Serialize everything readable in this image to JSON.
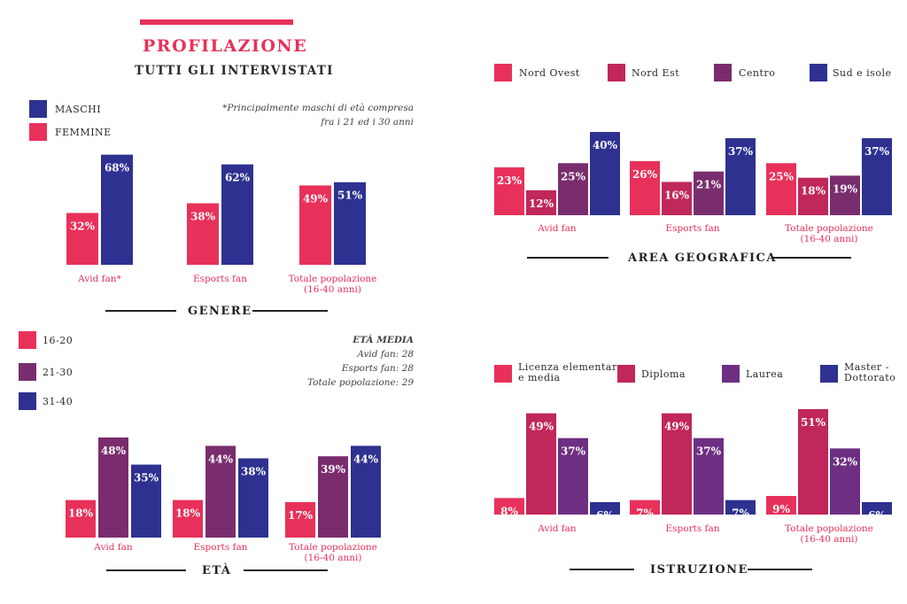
{
  "header": {
    "title": "PROFILAZIONE",
    "subtitle": "TUTTI GLI INTERVISTATI"
  },
  "colors": {
    "red": "#e8315a",
    "crimson": "#c0275a",
    "plum": "#7a2d6e",
    "purple": "#6e2f82",
    "navy": "#2e3190"
  },
  "panels": {
    "genere": {
      "section_label": "GENERE",
      "legend": [
        {
          "label": "MASCHI",
          "color": "#2e3190"
        },
        {
          "label": "FEMMINE",
          "color": "#e8315a"
        }
      ],
      "note": [
        "*Principalmente maschi di età compresa",
        "fra i 21 ed i 30 anni"
      ]
    },
    "area": {
      "section_label": "AREA GEOGRAFICA",
      "legend": [
        {
          "label": "Nord Ovest",
          "color": "#e8315a"
        },
        {
          "label": "Nord Est",
          "color": "#c0275a"
        },
        {
          "label": "Centro",
          "color": "#7a2d6e"
        },
        {
          "label": "Sud e isole",
          "color": "#2e3190"
        }
      ]
    },
    "eta": {
      "section_label": "ETÀ",
      "legend": [
        {
          "label": "16-20",
          "color": "#e8315a"
        },
        {
          "label": "21-30",
          "color": "#7a2d6e"
        },
        {
          "label": "31-40",
          "color": "#2e3190"
        }
      ],
      "note_title": "ETÀ MEDIA",
      "note_lines": [
        "Avid fan: 28",
        "Esports fan: 28",
        "Totale popolazione: 29"
      ]
    },
    "istruzione": {
      "section_label": "ISTRUZIONE",
      "legend": [
        {
          "label": "Licenza elementare\ne media",
          "color": "#e8315a"
        },
        {
          "label": "Diploma",
          "color": "#c0275a"
        },
        {
          "label": "Laurea",
          "color": "#6e2f82"
        },
        {
          "label": "Master -\nDottorato",
          "color": "#2e3190"
        }
      ]
    }
  },
  "chart_data": [
    {
      "id": "genere",
      "type": "bar",
      "categories": [
        "Avid fan*",
        "Esports fan",
        "Totale popolazione\n(16-40 anni)"
      ],
      "series": [
        {
          "name": "FEMMINE",
          "color": "#e8315a",
          "values": [
            32,
            38,
            49
          ]
        },
        {
          "name": "MASCHI",
          "color": "#2e3190",
          "values": [
            68,
            62,
            51
          ]
        }
      ],
      "ylim": [
        0,
        70
      ]
    },
    {
      "id": "area",
      "type": "bar",
      "categories": [
        "Avid fan",
        "Esports fan",
        "Totale popolazione\n(16-40 anni)"
      ],
      "series": [
        {
          "name": "Nord Ovest",
          "color": "#e8315a",
          "values": [
            23,
            26,
            25
          ]
        },
        {
          "name": "Nord Est",
          "color": "#c0275a",
          "values": [
            12,
            16,
            18
          ]
        },
        {
          "name": "Centro",
          "color": "#7a2d6e",
          "values": [
            25,
            21,
            19
          ]
        },
        {
          "name": "Sud e isole",
          "color": "#2e3190",
          "values": [
            40,
            37,
            37
          ]
        }
      ],
      "ylim": [
        0,
        40
      ]
    },
    {
      "id": "eta",
      "type": "bar",
      "categories": [
        "Avid fan",
        "Esports fan",
        "Totale popolazione\n(16-40 anni)"
      ],
      "series": [
        {
          "name": "16-20",
          "color": "#e8315a",
          "values": [
            18,
            18,
            17
          ]
        },
        {
          "name": "21-30",
          "color": "#7a2d6e",
          "values": [
            48,
            44,
            39
          ]
        },
        {
          "name": "31-40",
          "color": "#2e3190",
          "values": [
            35,
            38,
            44
          ]
        }
      ],
      "ylim": [
        0,
        48
      ]
    },
    {
      "id": "istruzione",
      "type": "bar",
      "categories": [
        "Avid fan",
        "Esports fan",
        "Totale popolazione\n(16-40 anni)"
      ],
      "series": [
        {
          "name": "Licenza elementare e media",
          "color": "#e8315a",
          "values": [
            8,
            7,
            9
          ]
        },
        {
          "name": "Diploma",
          "color": "#c0275a",
          "values": [
            49,
            49,
            51
          ]
        },
        {
          "name": "Laurea",
          "color": "#6e2f82",
          "values": [
            37,
            37,
            32
          ]
        },
        {
          "name": "Master - Dottorato",
          "color": "#2e3190",
          "values": [
            6,
            7,
            6
          ]
        }
      ],
      "ylim": [
        0,
        51
      ]
    }
  ]
}
